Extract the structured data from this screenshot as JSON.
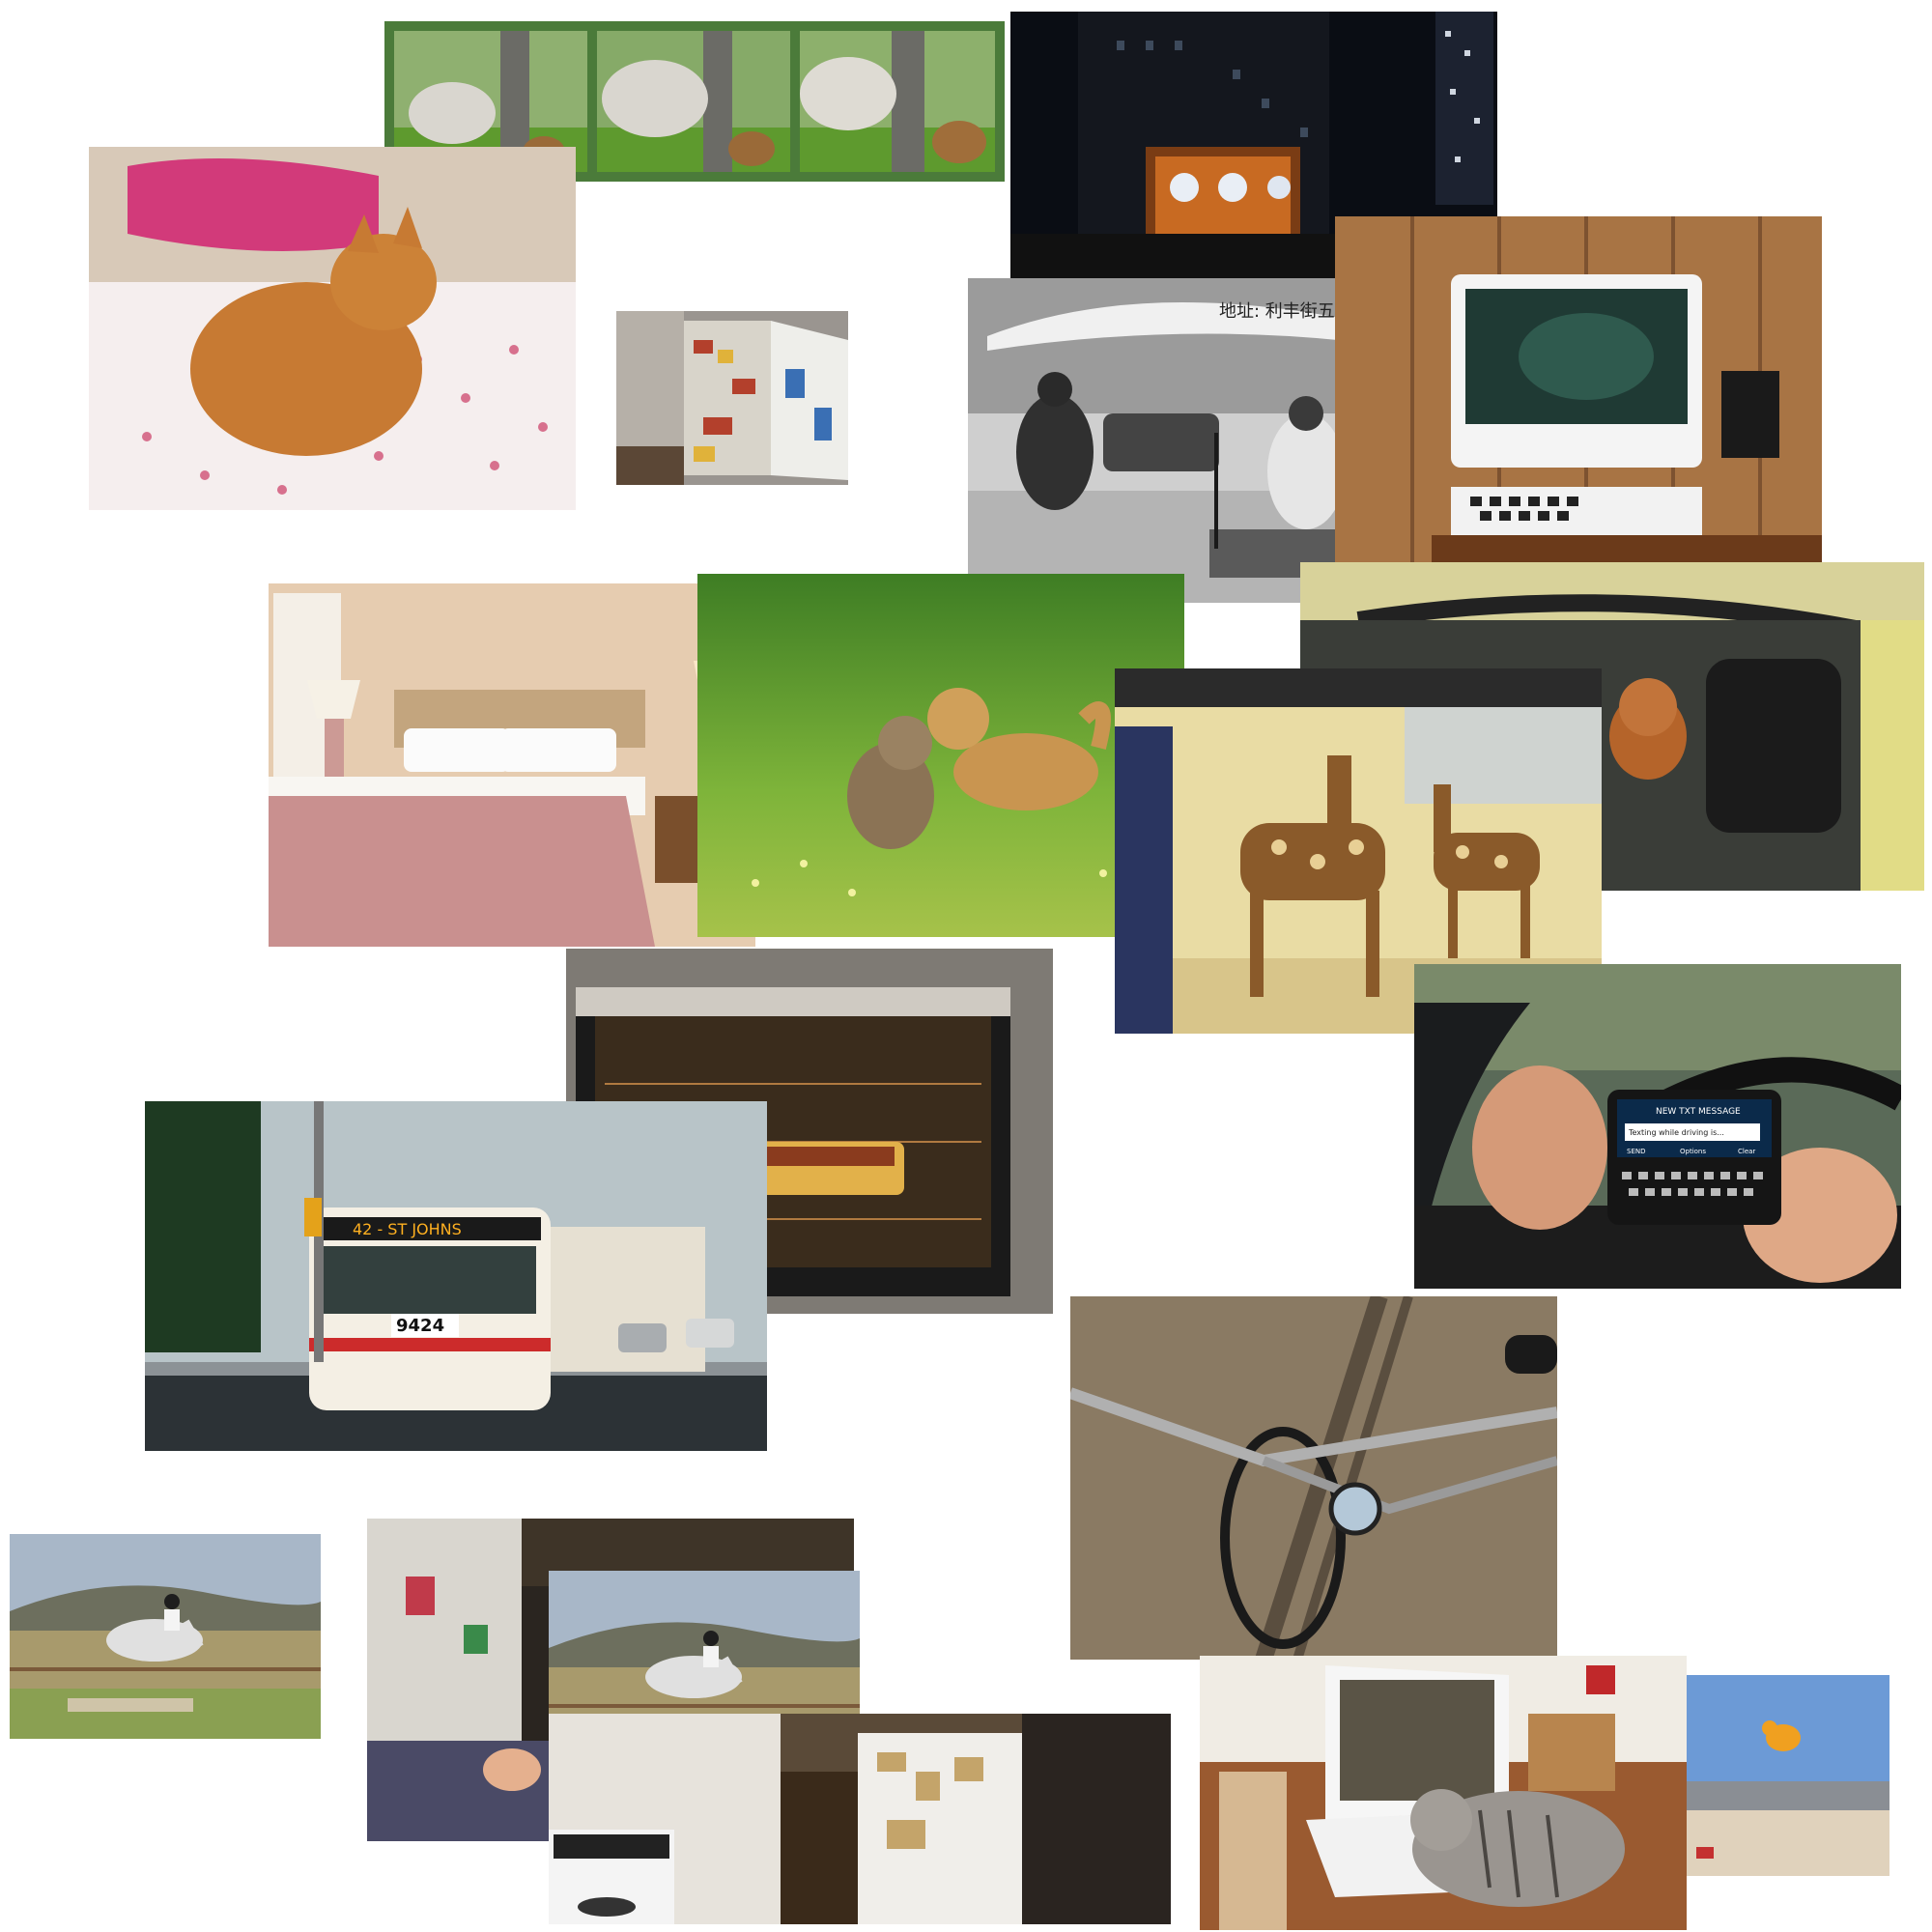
{
  "collage": {
    "bus_number": "9424",
    "bus_destination": "42 - ST JOHNS",
    "phone_header": "NEW TXT MESSAGE",
    "phone_message": "Texting while driving is...",
    "phone_buttons": [
      "SEND",
      "Options",
      "Clear"
    ],
    "umbrella_text": "地址: 利丰街五号 良友广场负一楼",
    "clock_building_sign": "",
    "colors": {
      "background": "#ffffff",
      "sheep_frame": "#4b7b3a",
      "night_sky": "#0a0d14",
      "grass": "#6aa83a",
      "bed_pink": "#c9908f",
      "oven_dark": "#1a1a1a",
      "sand": "#8a7a63"
    }
  }
}
